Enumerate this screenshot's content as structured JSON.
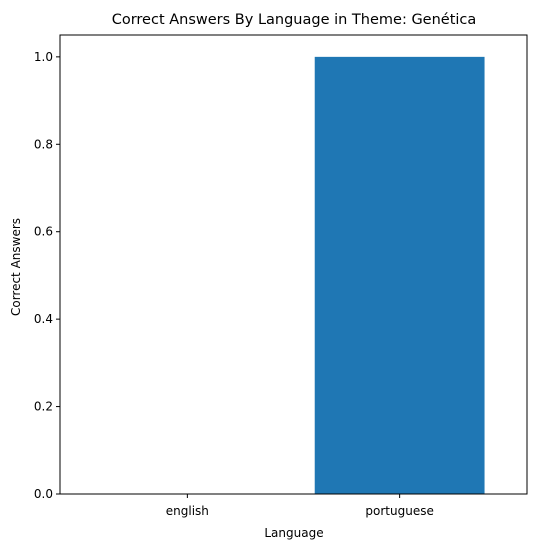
{
  "chart_data": {
    "type": "bar",
    "title": "Correct Answers By Language in Theme: Genética",
    "xlabel": "Language",
    "ylabel": "Correct Answers",
    "categories": [
      "english",
      "portuguese"
    ],
    "values": [
      0.0,
      1.0
    ],
    "ylim": [
      0,
      1.05
    ],
    "yticks": [
      "0.0",
      "0.2",
      "0.4",
      "0.6",
      "0.8",
      "1.0"
    ],
    "bar_color": "#1f77b4",
    "grid": false,
    "legend": "none"
  }
}
